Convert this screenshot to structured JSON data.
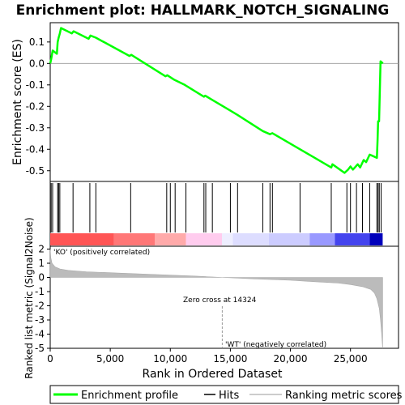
{
  "chart_data": {
    "type": "line",
    "title": "Enrichment plot: HALLMARK_NOTCH_SIGNALING",
    "top_panel": {
      "ylabel": "Enrichment score (ES)",
      "ylim": [
        -0.55,
        0.19
      ],
      "yticks": [
        0.1,
        0.0,
        -0.1,
        -0.2,
        -0.3,
        -0.4,
        -0.5
      ],
      "ytick_labels": [
        "0.1",
        "0.0",
        "-0.1",
        "-0.2",
        "-0.3",
        "-0.4",
        "-0.5"
      ],
      "line_color": "#00ff00",
      "es_curve": {
        "x": [
          0,
          80,
          200,
          550,
          620,
          700,
          800,
          900,
          1800,
          1950,
          3200,
          3350,
          3800,
          6600,
          6750,
          9600,
          9750,
          10300,
          11200,
          12800,
          12900,
          13500,
          15000,
          15600,
          17700,
          18300,
          18500,
          20800,
          23400,
          23500,
          24500,
          24800,
          25000,
          25200,
          25600,
          25800,
          26100,
          26300,
          26600,
          26800,
          27200,
          27250,
          27300,
          27380,
          27500,
          27700
        ],
        "y": [
          0.0,
          0.02,
          0.06,
          0.045,
          0.1,
          0.12,
          0.14,
          0.165,
          0.14,
          0.15,
          0.115,
          0.13,
          0.12,
          0.035,
          0.04,
          -0.06,
          -0.055,
          -0.075,
          -0.1,
          -0.155,
          -0.15,
          -0.17,
          -0.22,
          -0.24,
          -0.315,
          -0.33,
          -0.325,
          -0.4,
          -0.485,
          -0.47,
          -0.51,
          -0.495,
          -0.48,
          -0.495,
          -0.47,
          -0.485,
          -0.45,
          -0.46,
          -0.425,
          -0.43,
          -0.44,
          -0.36,
          -0.27,
          -0.27,
          0.01,
          0.0
        ]
      }
    },
    "hits": [
      80,
      200,
      620,
      700,
      800,
      1900,
      3300,
      3800,
      6700,
      9700,
      10000,
      10400,
      11300,
      12800,
      12950,
      13500,
      15000,
      15600,
      17700,
      18300,
      18500,
      20800,
      23400,
      24700,
      25000,
      25500,
      26000,
      26600,
      27200,
      27300,
      27400,
      27550
    ],
    "bottom_panel": {
      "xlabel": "Rank in Ordered Dataset",
      "ylabel": "Ranked list metric (Signal2Noise)",
      "xlim": [
        0,
        29000
      ],
      "xticks": [
        0,
        5000,
        10000,
        15000,
        20000,
        25000
      ],
      "xtick_labels": [
        "0",
        "5,000",
        "10,000",
        "15,000",
        "20,000",
        "25,000"
      ],
      "ylim": [
        -5,
        2.2
      ],
      "yticks": [
        2,
        1,
        0,
        -1,
        -2,
        -3,
        -4,
        -5
      ],
      "ytick_labels": [
        "2",
        "1",
        "0",
        "-1",
        "-2",
        "-3",
        "-4",
        "-5"
      ],
      "metric_curve": {
        "x": [
          0,
          50,
          150,
          400,
          800,
          1500,
          3000,
          6000,
          9000,
          12000,
          14324,
          17000,
          20000,
          22000,
          24000,
          25000,
          26000,
          26700,
          27000,
          27200,
          27400,
          27500,
          27600,
          27680
        ],
        "y": [
          2.0,
          1.4,
          1.0,
          0.75,
          0.6,
          0.5,
          0.4,
          0.3,
          0.2,
          0.1,
          0.0,
          -0.1,
          -0.2,
          -0.3,
          -0.4,
          -0.5,
          -0.65,
          -0.85,
          -1.1,
          -1.5,
          -2.2,
          -3.0,
          -4.0,
          -5.0
        ]
      },
      "zero_cross_rank": 14324,
      "zero_cross_label": "Zero cross at 14324",
      "positive_label": "'KO' (positively correlated)",
      "negative_label": "'WT' (negatively correlated)",
      "positive_label_color": "#cc0000",
      "negative_label_color": "#0000cc"
    },
    "heat_bar": {
      "segments": [
        {
          "end": 5300,
          "color": "#ff5555"
        },
        {
          "end": 8700,
          "color": "#ff7777"
        },
        {
          "end": 11300,
          "color": "#ffaaaa"
        },
        {
          "end": 14300,
          "color": "#ffccee"
        },
        {
          "end": 15200,
          "color": "#eeeeff"
        },
        {
          "end": 18200,
          "color": "#ddddff"
        },
        {
          "end": 21600,
          "color": "#ccccff"
        },
        {
          "end": 23700,
          "color": "#9999ff"
        },
        {
          "end": 26600,
          "color": "#4444ee"
        },
        {
          "end": 27680,
          "color": "#0000bb"
        }
      ]
    },
    "legend": [
      {
        "label": "Enrichment profile",
        "color": "#00ff00",
        "kind": "line-thick"
      },
      {
        "label": "Hits",
        "color": "#000000",
        "kind": "line"
      },
      {
        "label": "Ranking metric scores",
        "color": "#bbbbbb",
        "kind": "line"
      }
    ]
  }
}
